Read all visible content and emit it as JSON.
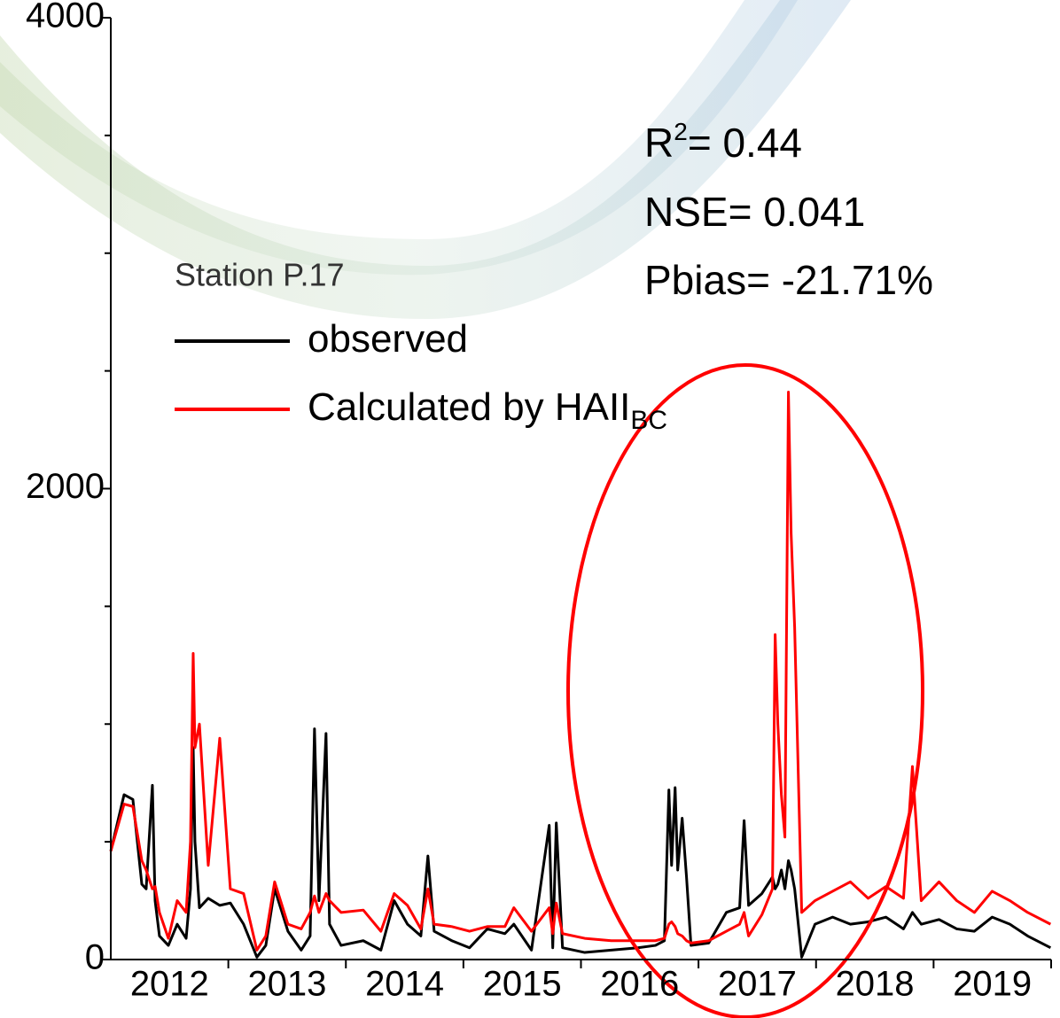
{
  "chart_data": {
    "type": "line",
    "legend_title": "Station P.17",
    "legend": "upper left",
    "annotations": [
      {
        "text": "R",
        "superscript": "2",
        "tail": "= 0.44"
      },
      {
        "text": "NSE= 0.041"
      },
      {
        "text": "Pbias= -21.71%"
      }
    ],
    "x": [
      2012.0,
      2012.113,
      2012.188,
      2012.264,
      2012.301,
      2012.354,
      2012.377,
      2012.414,
      2012.49,
      2012.565,
      2012.641,
      2012.678,
      2012.701,
      2012.716,
      2012.754,
      2012.829,
      2012.927,
      2013.017,
      2013.13,
      2013.243,
      2013.319,
      2013.394,
      2013.507,
      2013.62,
      2013.696,
      2013.733,
      2013.771,
      2013.831,
      2013.861,
      2013.959,
      2014.148,
      2014.298,
      2014.411,
      2014.524,
      2014.638,
      2014.698,
      2014.751,
      2014.901,
      2015.052,
      2015.203,
      2015.353,
      2015.429,
      2015.579,
      2015.73,
      2015.76,
      2015.79,
      2015.843,
      2016.032,
      2016.258,
      2016.484,
      2016.634,
      2016.71,
      2016.748,
      2016.771,
      2016.801,
      2016.823,
      2016.861,
      2016.898,
      2016.936,
      2017.087,
      2017.237,
      2017.35,
      2017.388,
      2017.426,
      2017.539,
      2017.629,
      2017.652,
      2017.675,
      2017.705,
      2017.735,
      2017.765,
      2017.788,
      2017.818,
      2017.878,
      2017.991,
      2018.141,
      2018.292,
      2018.443,
      2018.594,
      2018.744,
      2018.82,
      2018.895,
      2019.046,
      2019.197,
      2019.347,
      2019.498,
      2019.649,
      2019.8,
      2019.995
    ],
    "series": [
      {
        "name": "observed",
        "color": "#000000",
        "values": [
          460,
          700,
          680,
          320,
          300,
          740,
          250,
          100,
          60,
          150,
          90,
          300,
          900,
          500,
          220,
          260,
          230,
          240,
          150,
          10,
          60,
          300,
          120,
          40,
          100,
          980,
          250,
          960,
          150,
          60,
          80,
          40,
          250,
          150,
          100,
          440,
          120,
          80,
          50,
          130,
          110,
          150,
          40,
          570,
          50,
          580,
          50,
          30,
          40,
          50,
          60,
          80,
          720,
          400,
          730,
          380,
          600,
          350,
          60,
          70,
          200,
          220,
          590,
          230,
          280,
          350,
          300,
          320,
          380,
          300,
          420,
          380,
          300,
          10,
          150,
          180,
          150,
          160,
          180,
          130,
          200,
          150,
          170,
          130,
          120,
          180,
          150,
          100,
          50
        ]
      },
      {
        "name": "Calculated by HAII",
        "name_subscript": "BC",
        "color": "#ff0000",
        "values": [
          460,
          660,
          650,
          420,
          380,
          300,
          310,
          200,
          90,
          250,
          200,
          500,
          1300,
          900,
          1000,
          400,
          940,
          300,
          280,
          40,
          100,
          330,
          150,
          130,
          200,
          270,
          200,
          280,
          250,
          200,
          210,
          120,
          280,
          230,
          130,
          300,
          150,
          140,
          120,
          140,
          140,
          220,
          120,
          220,
          110,
          240,
          110,
          90,
          80,
          80,
          80,
          90,
          150,
          160,
          140,
          110,
          100,
          80,
          70,
          80,
          120,
          150,
          200,
          100,
          190,
          300,
          1380,
          1000,
          700,
          520,
          2410,
          1810,
          1410,
          200,
          250,
          290,
          330,
          260,
          310,
          260,
          820,
          250,
          330,
          250,
          200,
          290,
          250,
          200,
          150
        ]
      }
    ],
    "xlim": [
      2012,
      2020
    ],
    "xticks": [
      {
        "value": 2012.5,
        "label": "2012"
      },
      {
        "value": 2013.5,
        "label": "2013"
      },
      {
        "value": 2014.5,
        "label": "2014"
      },
      {
        "value": 2015.5,
        "label": "2015"
      },
      {
        "value": 2016.5,
        "label": "2016"
      },
      {
        "value": 2017.5,
        "label": "2017"
      },
      {
        "value": 2018.5,
        "label": "2018"
      },
      {
        "value": 2019.5,
        "label": "2019"
      }
    ],
    "xtick_marks": [
      2013,
      2014,
      2015,
      2016,
      2017,
      2018,
      2019,
      2020
    ],
    "ylim": [
      0,
      4000
    ],
    "yticks": [
      0,
      2000,
      4000
    ],
    "yminorticks": [
      500,
      1000,
      1500,
      2500,
      3000,
      3500
    ]
  }
}
